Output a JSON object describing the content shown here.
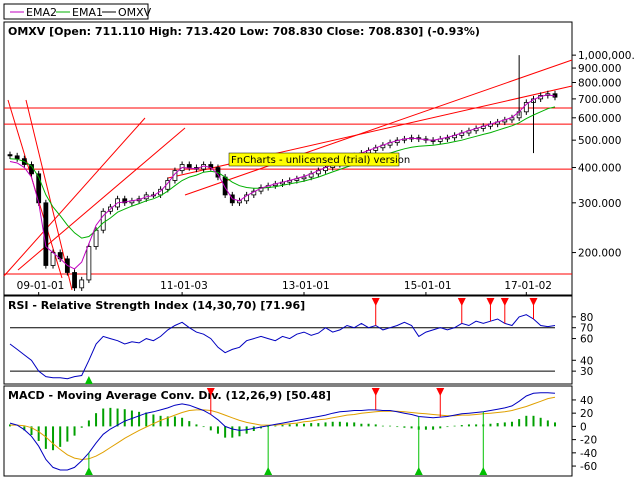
{
  "legend": [
    {
      "label": "EMA2",
      "color": "#c000c0"
    },
    {
      "label": "EMA1",
      "color": "#00b000"
    },
    {
      "label": "OMXV",
      "color": "#000000"
    }
  ],
  "watermark": "FnCharts - unlicensed (trial) version",
  "colors": {
    "price_ema_slow": "#c000c0",
    "price_ema_fast": "#00b000",
    "trendline": "#ff0000",
    "rsi_line": "#0000c0",
    "macd_line": "#0000c0",
    "signal_line": "#e0a000",
    "hist": "#00a000",
    "buy_marker": "#00c000",
    "sell_marker": "#ff0000"
  },
  "chart_data": [
    {
      "type": "candlestick",
      "title": "OMXV [Open: 711.110 High: 713.420 Low: 708.830 Close: 708.830] (-0.93%)",
      "y_scale": "log",
      "y_ticks": [
        "1,000,000.",
        "900.000",
        "800.000",
        "700.000",
        "600.000",
        "500.000",
        "400.000",
        "300.000",
        "200.000"
      ],
      "x_ticks": [
        "09-01-01",
        "11-01-03",
        "13-01-01",
        "15-01-01",
        "17-01-02"
      ],
      "series_names": [
        "OMXV",
        "EMA1",
        "EMA2"
      ],
      "close": [
        440,
        430,
        410,
        380,
        300,
        180,
        200,
        190,
        170,
        150,
        160,
        210,
        240,
        280,
        290,
        310,
        300,
        305,
        310,
        320,
        320,
        335,
        360,
        390,
        410,
        400,
        395,
        410,
        400,
        370,
        320,
        300,
        305,
        320,
        330,
        340,
        345,
        350,
        355,
        360,
        365,
        370,
        380,
        390,
        400,
        410,
        420,
        430,
        440,
        450,
        460,
        470,
        480,
        490,
        500,
        505,
        510,
        505,
        500,
        495,
        505,
        510,
        520,
        530,
        540,
        550,
        560,
        570,
        580,
        590,
        600,
        630,
        680,
        700,
        720,
        730,
        710
      ],
      "ema_fast": [
        430,
        428,
        420,
        405,
        370,
        320,
        290,
        270,
        250,
        235,
        225,
        228,
        240,
        255,
        265,
        278,
        285,
        292,
        298,
        305,
        310,
        318,
        330,
        345,
        360,
        370,
        376,
        385,
        388,
        384,
        370,
        355,
        345,
        340,
        338,
        338,
        340,
        342,
        346,
        350,
        354,
        358,
        364,
        370,
        378,
        386,
        394,
        402,
        410,
        418,
        426,
        434,
        442,
        450,
        458,
        466,
        472,
        476,
        478,
        480,
        484,
        488,
        494,
        500,
        508,
        516,
        524,
        532,
        542,
        552,
        562,
        576,
        596,
        614,
        630,
        646,
        656
      ],
      "ema_slow": [
        420,
        415,
        400,
        370,
        300,
        210,
        200,
        190,
        180,
        175,
        185,
        215,
        250,
        270,
        285,
        300,
        302,
        305,
        308,
        315,
        318,
        330,
        352,
        380,
        400,
        398,
        396,
        405,
        400,
        378,
        340,
        310,
        305,
        318,
        328,
        338,
        344,
        350,
        355,
        360,
        366,
        372,
        380,
        390,
        400,
        410,
        420,
        430,
        440,
        450,
        460,
        470,
        480,
        490,
        498,
        505,
        508,
        506,
        502,
        500,
        505,
        512,
        520,
        530,
        540,
        550,
        560,
        570,
        580,
        590,
        602,
        630,
        670,
        696,
        714,
        724,
        716
      ]
    },
    {
      "type": "line",
      "title": "RSI - Relative Strength Index (14,30,70) [71.96]",
      "params": [
        14,
        30,
        70
      ],
      "last_value": 71.96,
      "y_ticks": [
        80,
        70,
        60,
        40,
        30
      ],
      "ylim": [
        20,
        90
      ],
      "levels": [
        30,
        70
      ],
      "values": [
        55,
        50,
        45,
        40,
        30,
        25,
        24,
        24,
        23,
        25,
        26,
        40,
        55,
        62,
        60,
        58,
        55,
        57,
        56,
        60,
        58,
        62,
        68,
        72,
        75,
        70,
        66,
        64,
        60,
        52,
        47,
        50,
        52,
        58,
        60,
        62,
        60,
        58,
        62,
        60,
        64,
        66,
        63,
        65,
        70,
        66,
        68,
        72,
        70,
        74,
        70,
        72,
        68,
        70,
        72,
        75,
        72,
        62,
        66,
        68,
        70,
        68,
        70,
        74,
        72,
        76,
        74,
        76,
        78,
        74,
        72,
        80,
        82,
        78,
        72,
        71,
        72
      ],
      "buy_signals": [
        11
      ],
      "sell_signals": [
        51,
        63,
        67,
        69,
        73
      ]
    },
    {
      "type": "line",
      "title": "MACD - Moving Average Conv. Div. (12,26,9) [50.48]",
      "params": [
        12,
        26,
        9
      ],
      "last_value": 50.48,
      "y_ticks": [
        40,
        20,
        0,
        -20,
        -40,
        -60
      ],
      "ylim": [
        -72,
        52
      ],
      "macd": [
        5,
        2,
        -5,
        -15,
        -30,
        -50,
        -62,
        -66,
        -66,
        -62,
        -52,
        -40,
        -25,
        -12,
        -4,
        2,
        8,
        12,
        16,
        20,
        22,
        25,
        28,
        32,
        34,
        32,
        28,
        24,
        18,
        10,
        0,
        -4,
        -6,
        -5,
        -3,
        -1,
        1,
        3,
        5,
        7,
        9,
        11,
        13,
        15,
        17,
        20,
        22,
        23,
        24,
        24,
        25,
        25,
        24,
        24,
        22,
        20,
        18,
        15,
        14,
        13,
        14,
        15,
        17,
        19,
        20,
        21,
        22,
        24,
        26,
        28,
        31,
        38,
        46,
        50,
        51,
        51,
        50
      ],
      "signal": [
        2,
        2,
        1,
        -2,
        -8,
        -16,
        -26,
        -35,
        -43,
        -48,
        -50,
        -49,
        -45,
        -39,
        -32,
        -25,
        -18,
        -12,
        -6,
        -1,
        4,
        9,
        13,
        17,
        21,
        24,
        25,
        25,
        24,
        21,
        17,
        13,
        9,
        6,
        4,
        2,
        2,
        2,
        3,
        4,
        5,
        7,
        8,
        10,
        11,
        13,
        15,
        17,
        18,
        20,
        21,
        22,
        23,
        23,
        23,
        22,
        21,
        20,
        19,
        18,
        17,
        16,
        16,
        17,
        17,
        18,
        19,
        20,
        21,
        22,
        24,
        27,
        30,
        34,
        38,
        42,
        44
      ],
      "buy_signals": [
        11,
        36,
        57,
        66
      ],
      "sell_signals": [
        28,
        51,
        60
      ]
    }
  ]
}
